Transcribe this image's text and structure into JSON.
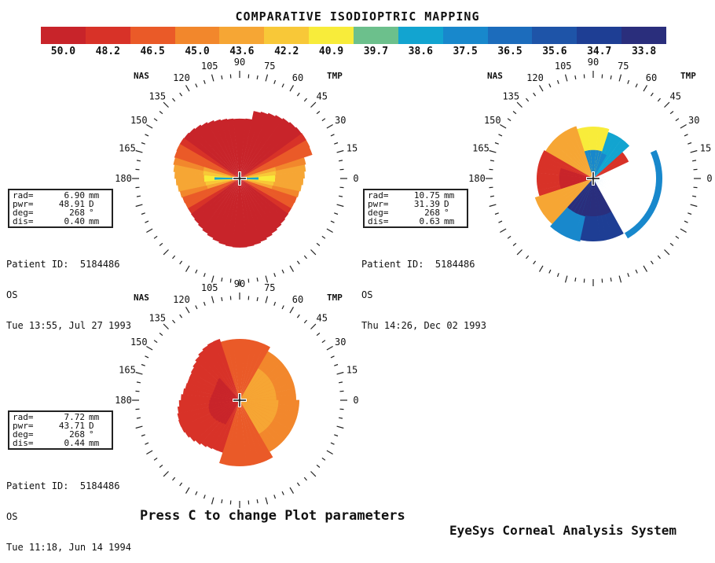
{
  "title": "COMPARATIVE ISODIOPTRIC MAPPING",
  "color_scale": {
    "labels": [
      "50.0",
      "48.2",
      "46.5",
      "45.0",
      "43.6",
      "42.2",
      "40.9",
      "39.7",
      "38.6",
      "37.5",
      "36.5",
      "35.6",
      "34.7",
      "33.8"
    ],
    "colors": [
      "#c8242a",
      "#d83228",
      "#ea5a28",
      "#f2872c",
      "#f6a634",
      "#f8c838",
      "#f8ec3a",
      "#6cc08c",
      "#12a4d0",
      "#1888cc",
      "#1c6cbc",
      "#1e54a8",
      "#1e3e94",
      "#2a2e7c"
    ]
  },
  "axis_labels": {
    "nasal": "NAS",
    "temporal": "TMP",
    "angles": [
      "90",
      "105",
      "120",
      "135",
      "150",
      "165",
      "180",
      "0",
      "15",
      "30",
      "45",
      "60",
      "75"
    ]
  },
  "maps": [
    {
      "id": "map1",
      "info": {
        "rad_label": "rad=",
        "rad_value": "6.90",
        "rad_unit": "mm",
        "pwr_label": "pwr=",
        "pwr_value": "48.91",
        "pwr_unit": "D",
        "deg_label": "deg=",
        "deg_value": "268",
        "deg_unit": "°",
        "dis_label": "dis=",
        "dis_value": "0.40",
        "dis_unit": "mm"
      },
      "patient_line": "Patient ID:  5184486",
      "eye": "OS",
      "timestamp": "Tue 13:55, Jul 27 1993"
    },
    {
      "id": "map2",
      "info": {
        "rad_label": "rad=",
        "rad_value": "10.75",
        "rad_unit": "mm",
        "pwr_label": "pwr=",
        "pwr_value": "31.39",
        "pwr_unit": "D",
        "deg_label": "deg=",
        "deg_value": "268",
        "deg_unit": "°",
        "dis_label": "dis=",
        "dis_value": "0.63",
        "dis_unit": "mm"
      },
      "patient_line": "Patient ID:  5184486",
      "eye": "OS",
      "timestamp": "Thu 14:26, Dec 02 1993"
    },
    {
      "id": "map3",
      "info": {
        "rad_label": "rad=",
        "rad_value": "7.72",
        "rad_unit": "mm",
        "pwr_label": "pwr=",
        "pwr_value": "43.71",
        "pwr_unit": "D",
        "deg_label": "deg=",
        "deg_value": "268",
        "deg_unit": "°",
        "dis_label": "dis=",
        "dis_value": "0.44",
        "dis_unit": "mm"
      },
      "patient_line": "Patient ID:  5184486",
      "eye": "OS",
      "timestamp": "Tue 11:18, Jun 14 1994"
    }
  ],
  "footer": {
    "prompt": "Press C to change Plot parameters",
    "brand": "EyeSys Corneal Analysis System"
  }
}
